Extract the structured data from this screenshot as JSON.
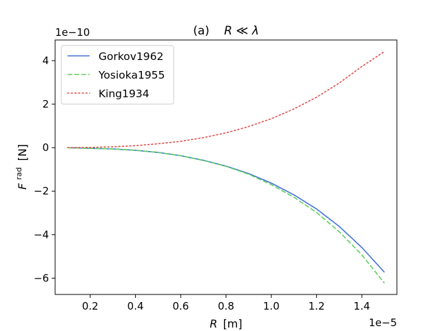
{
  "chart_data": {
    "type": "line",
    "title": "(a)   R ≪ λ",
    "title_parts": {
      "label": "(a)",
      "relation": "R ≪ λ"
    },
    "xlabel": "R [m]",
    "ylabel": "F^rad [N]",
    "xlabel_parts": {
      "symbol": "R",
      "unit": "[m]"
    },
    "ylabel_parts": {
      "symbol": "F",
      "superscript": "rad",
      "unit": "[N]"
    },
    "x_offset_text": "1e−5",
    "y_offset_text": "1e−10",
    "x_scale": 1e-05,
    "y_scale": 1e-10,
    "xlim": [
      0.045,
      1.555
    ],
    "ylim": [
      -6.75,
      4.95
    ],
    "xticks": [
      0.2,
      0.4,
      0.6,
      0.8,
      1.0,
      1.2,
      1.4
    ],
    "xtick_labels": [
      "0.2",
      "0.4",
      "0.6",
      "0.8",
      "1.0",
      "1.2",
      "1.4"
    ],
    "yticks": [
      -6,
      -4,
      -2,
      0,
      2,
      4
    ],
    "ytick_labels": [
      "−6",
      "−4",
      "−2",
      "0",
      "2",
      "4"
    ],
    "grid": false,
    "legend_position": "top-left",
    "x": [
      0.1,
      0.2,
      0.3,
      0.4,
      0.5,
      0.6,
      0.7,
      0.8,
      0.9,
      1.0,
      1.1,
      1.2,
      1.3,
      1.4,
      1.5
    ],
    "series": [
      {
        "name": "Gorkov1962",
        "color": "#4472d9",
        "dash": "solid",
        "values": [
          -0.003,
          -0.03,
          -0.06,
          -0.12,
          -0.22,
          -0.37,
          -0.58,
          -0.85,
          -1.19,
          -1.63,
          -2.17,
          -2.82,
          -3.62,
          -4.59,
          -5.73
        ]
      },
      {
        "name": "Yosioka1955",
        "color": "#5ccf5c",
        "dash": "dashed",
        "values": [
          -0.003,
          -0.03,
          -0.06,
          -0.12,
          -0.22,
          -0.37,
          -0.59,
          -0.86,
          -1.22,
          -1.7,
          -2.28,
          -2.98,
          -3.86,
          -4.93,
          -6.23
        ]
      },
      {
        "name": "King1934",
        "color": "#e0524e",
        "dash": "dotted",
        "values": [
          0.001,
          0.01,
          0.04,
          0.09,
          0.18,
          0.29,
          0.46,
          0.68,
          0.97,
          1.33,
          1.78,
          2.32,
          2.97,
          3.73,
          4.42
        ]
      }
    ]
  }
}
